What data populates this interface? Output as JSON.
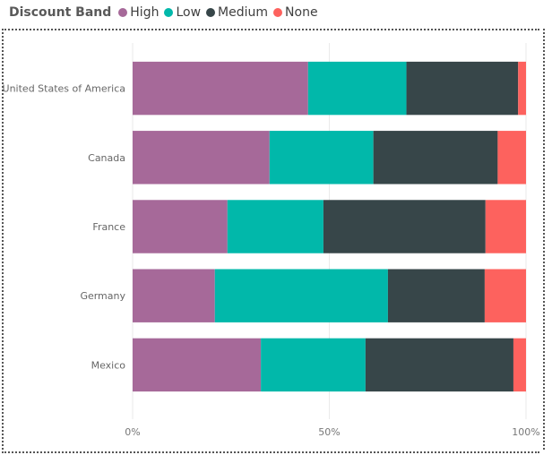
{
  "legend": {
    "title": "Discount Band",
    "items": [
      {
        "label": "High",
        "color": "#A66999"
      },
      {
        "label": "Low",
        "color": "#01B8AA"
      },
      {
        "label": "Medium",
        "color": "#374649"
      },
      {
        "label": "None",
        "color": "#FD625E"
      }
    ]
  },
  "chart_data": {
    "type": "bar",
    "orientation": "horizontal",
    "stacking": "100%",
    "categories": [
      "United States of America",
      "Canada",
      "France",
      "Germany",
      "Mexico"
    ],
    "series": [
      {
        "name": "High",
        "color": "#A66999",
        "values": [
          44.6,
          34.8,
          24.1,
          20.9,
          32.6
        ]
      },
      {
        "name": "Low",
        "color": "#01B8AA",
        "values": [
          25.0,
          26.4,
          24.4,
          44.0,
          26.6
        ]
      },
      {
        "name": "Medium",
        "color": "#374649",
        "values": [
          28.4,
          31.6,
          41.2,
          24.6,
          37.6
        ]
      },
      {
        "name": "None",
        "color": "#FD625E",
        "values": [
          2.0,
          7.2,
          10.3,
          10.5,
          3.2
        ]
      }
    ],
    "xlim": [
      0,
      100
    ],
    "x_ticks": [
      "0%",
      "50%",
      "100%"
    ],
    "grid": true,
    "legend_position": "top-left"
  }
}
